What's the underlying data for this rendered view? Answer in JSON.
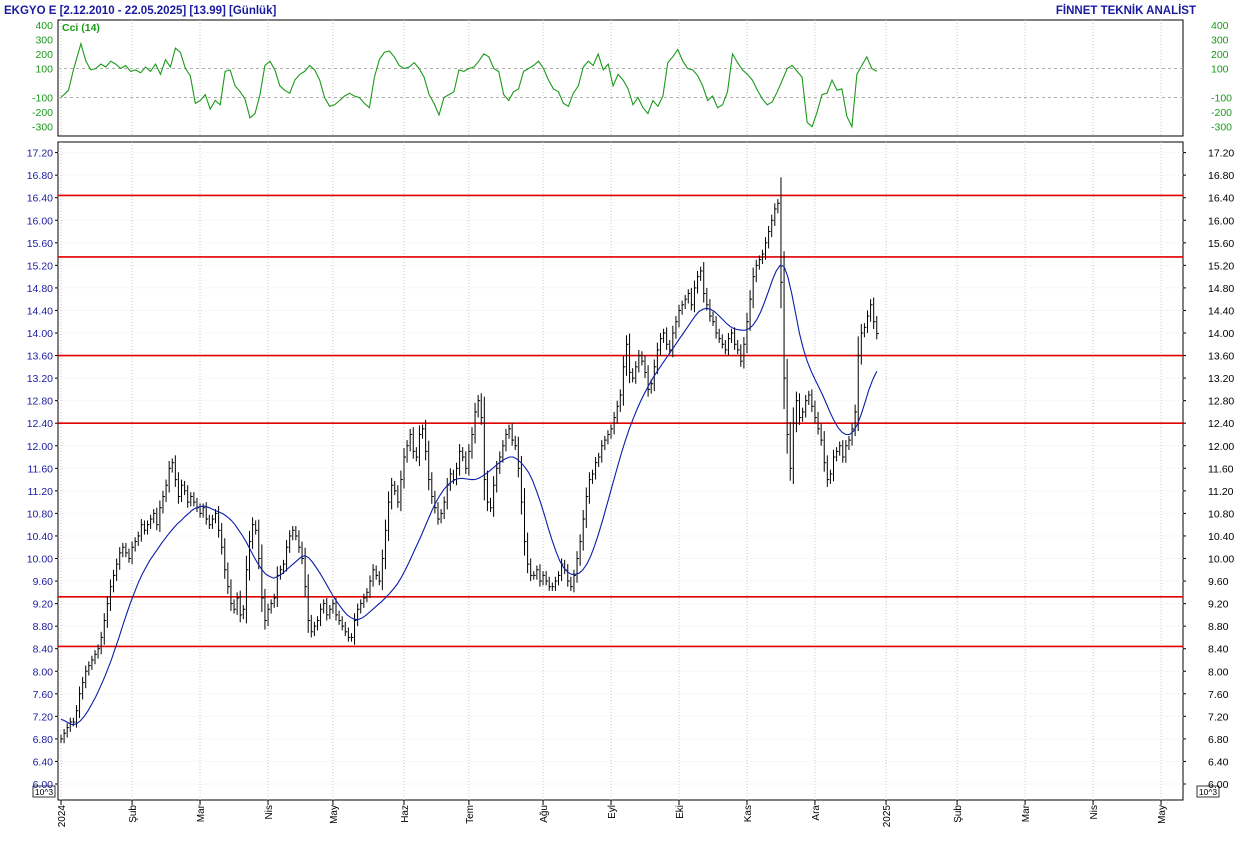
{
  "header": {
    "title": "EKGYO E  [2.12.2010 - 22.05.2025]  [13.99]  [Günlük]",
    "brand": "FİNNET TEKNİK ANALİST"
  },
  "colors": {
    "price_bars": "#000000",
    "moving_average": "#0b1ea8",
    "horizontal_levels": "#e00000",
    "cci_line": "#1a9a1a",
    "axis_text_left": "#1a1aa0",
    "cci_axis_text": "#1a9a1a",
    "brand_text": "#1a1aa0",
    "grid": "#c8c8c8"
  },
  "chart_data": [
    {
      "type": "line",
      "name": "cci-panel",
      "legend": "Cci (14)",
      "ylim": [
        -400,
        400
      ],
      "y_ticks": [
        "400",
        "300",
        "200",
        "100",
        "-100",
        "-200",
        "-300"
      ],
      "reference_lines": [
        100,
        -100
      ],
      "grid": true,
      "series": [
        {
          "name": "Cci (14)",
          "x": [
            0,
            3,
            5,
            8,
            10,
            12,
            14,
            16,
            18,
            20,
            22,
            24,
            26,
            28,
            30,
            32,
            34,
            36,
            38,
            40,
            42,
            44,
            46,
            48,
            50,
            52,
            54,
            56,
            58,
            60,
            62,
            64,
            66,
            68,
            70,
            72,
            74,
            76,
            78,
            80,
            82,
            84,
            86,
            88,
            90,
            92,
            94,
            96,
            98,
            100,
            102,
            104,
            106,
            108,
            110,
            112,
            114,
            116,
            118,
            120,
            122,
            124,
            126,
            128,
            130,
            132,
            134,
            136,
            138,
            140,
            142,
            144,
            146,
            148,
            150,
            152,
            154,
            156,
            158,
            160,
            162,
            164,
            166,
            168,
            170,
            172,
            174,
            176,
            178,
            180,
            182,
            184,
            186,
            188,
            190,
            192,
            194,
            196,
            198,
            200,
            202,
            204,
            206,
            208,
            210,
            212,
            214,
            216,
            218,
            220,
            222,
            224,
            226,
            228,
            230,
            232,
            234,
            236,
            238,
            240,
            242,
            244,
            246,
            248,
            250,
            252,
            254,
            256,
            258,
            260,
            262,
            264,
            266,
            268,
            270,
            272,
            274,
            276,
            278,
            280,
            282,
            284,
            286,
            288,
            290,
            292,
            294,
            296,
            298,
            300,
            302,
            304,
            306,
            308,
            310,
            312,
            314,
            316,
            318,
            320,
            322,
            324,
            326,
            328
          ],
          "values": [
            -100,
            -50,
            90,
            270,
            150,
            90,
            100,
            130,
            110,
            150,
            130,
            100,
            120,
            80,
            90,
            70,
            110,
            80,
            130,
            60,
            160,
            110,
            240,
            210,
            100,
            50,
            -140,
            -120,
            -80,
            -180,
            -120,
            -150,
            80,
            90,
            -20,
            -60,
            -110,
            -240,
            -210,
            -80,
            120,
            150,
            90,
            -20,
            -50,
            -70,
            20,
            60,
            80,
            120,
            90,
            20,
            -100,
            -160,
            -150,
            -120,
            -90,
            -70,
            -90,
            -100,
            -140,
            -170,
            40,
            160,
            210,
            220,
            180,
            120,
            100,
            110,
            140,
            100,
            40,
            -80,
            -140,
            -220,
            -100,
            -80,
            -60,
            90,
            80,
            100,
            110,
            150,
            200,
            180,
            100,
            80,
            -80,
            -120,
            -60,
            -40,
            80,
            100,
            120,
            150,
            100,
            20,
            -40,
            -60,
            -140,
            -160,
            -70,
            -20,
            110,
            150,
            120,
            200,
            90,
            130,
            -20,
            60,
            20,
            -40,
            -150,
            -100,
            -170,
            -210,
            -120,
            -160,
            -90,
            140,
            180,
            230,
            150,
            100,
            90,
            50,
            -20,
            -120,
            -90,
            -170,
            -150,
            -60,
            200,
            140,
            90,
            60,
            20,
            -50,
            -110,
            -150,
            -130,
            -60,
            20,
            100,
            120,
            80,
            40,
            -270,
            -300,
            -200,
            -80,
            -70,
            20,
            -50,
            -40,
            -230,
            -300,
            60,
            120,
            180,
            100,
            80
          ],
          "note_x_is_bar_index": "x is the bar index of the daily series"
        }
      ]
    },
    {
      "type": "bar",
      "name": "price-panel",
      "ylim": [
        6.0,
        17.4
      ],
      "y_ticks": [
        "17.20",
        "16.80",
        "16.40",
        "16.00",
        "15.60",
        "15.20",
        "14.80",
        "14.40",
        "14.00",
        "13.60",
        "13.20",
        "12.80",
        "12.40",
        "12.00",
        "11.60",
        "11.20",
        "10.80",
        "10.40",
        "10.00",
        "9.60",
        "9.20",
        "8.80",
        "8.40",
        "8.00",
        "7.60",
        "7.20",
        "6.80",
        "6.40",
        "6.00"
      ],
      "scale_label": "10^3",
      "x_labels": [
        "2024",
        "Şub",
        "Mar",
        "Nis",
        "May",
        "Haz",
        "Tem",
        "Ağu",
        "Eyl",
        "Eki",
        "Kas",
        "Ara",
        "2025",
        "Şub",
        "Mar",
        "Nis",
        "May"
      ],
      "x_label_bar_index": [
        0,
        23,
        45,
        67,
        88,
        111,
        132,
        156,
        178,
        200,
        222,
        244,
        267,
        290,
        312,
        334,
        356
      ],
      "horizontal_levels": [
        16.44,
        15.35,
        13.6,
        12.4,
        9.32,
        8.44
      ],
      "grid": true,
      "series": [
        {
          "name": "price",
          "representation": "high-low bars with close ticks",
          "close": [
            6.8,
            6.9,
            7.0,
            7.1,
            7.1,
            7.3,
            7.6,
            7.8,
            8.0,
            8.1,
            8.2,
            8.3,
            8.4,
            8.6,
            8.9,
            9.2,
            9.5,
            9.7,
            9.9,
            10.1,
            10.2,
            10.1,
            10.0,
            10.2,
            10.3,
            10.4,
            10.6,
            10.5,
            10.6,
            10.7,
            10.8,
            10.6,
            10.9,
            11.1,
            11.3,
            11.6,
            11.7,
            11.4,
            11.1,
            11.3,
            11.2,
            11.0,
            11.1,
            11.0,
            10.9,
            10.8,
            10.9,
            10.7,
            10.6,
            10.7,
            10.8,
            10.5,
            10.2,
            9.8,
            9.5,
            9.2,
            9.1,
            9.3,
            9.0,
            9.1,
            9.8,
            10.3,
            10.6,
            10.5,
            10.0,
            9.3,
            8.9,
            9.1,
            9.2,
            9.3,
            9.7,
            9.8,
            9.9,
            10.2,
            10.4,
            10.5,
            10.4,
            10.2,
            10.0,
            9.5,
            8.9,
            8.7,
            8.8,
            8.9,
            9.1,
            9.2,
            9.0,
            9.1,
            9.2,
            9.0,
            8.9,
            8.8,
            8.7,
            8.6,
            8.6,
            8.9,
            9.1,
            9.2,
            9.3,
            9.4,
            9.6,
            9.8,
            9.7,
            9.6,
            10.0,
            10.5,
            11.0,
            11.3,
            11.2,
            11.0,
            11.4,
            11.8,
            12.0,
            12.2,
            11.9,
            11.8,
            12.2,
            12.3,
            11.9,
            11.4,
            11.1,
            10.9,
            10.7,
            10.8,
            11.0,
            11.3,
            11.5,
            11.4,
            11.6,
            11.9,
            11.8,
            11.6,
            11.9,
            12.2,
            12.6,
            12.8,
            12.5,
            11.4,
            11.0,
            10.9,
            11.3,
            11.6,
            11.8,
            12.0,
            12.2,
            12.3,
            12.1,
            12.0,
            11.6,
            11.0,
            10.3,
            9.9,
            9.7,
            9.7,
            9.8,
            9.6,
            9.7,
            9.6,
            9.5,
            9.5,
            9.6,
            9.7,
            9.9,
            9.8,
            9.6,
            9.5,
            9.7,
            10.0,
            10.3,
            10.7,
            11.1,
            11.4,
            11.5,
            11.7,
            11.8,
            12.0,
            12.1,
            12.2,
            12.3,
            12.5,
            12.7,
            12.9,
            13.4,
            13.8,
            13.3,
            13.2,
            13.4,
            13.6,
            13.5,
            13.3,
            13.0,
            13.1,
            13.4,
            13.7,
            13.9,
            14.0,
            13.8,
            13.7,
            14.0,
            14.2,
            14.4,
            14.5,
            14.6,
            14.7,
            14.5,
            14.8,
            15.0,
            15.1,
            14.7,
            14.5,
            14.3,
            14.2,
            14.0,
            13.9,
            13.8,
            13.7,
            13.9,
            14.0,
            13.8,
            13.7,
            13.5,
            13.8,
            14.2,
            14.6,
            15.0,
            15.2,
            15.3,
            15.4,
            15.6,
            15.8,
            16.0,
            16.2,
            16.3,
            14.9,
            13.2,
            12.2,
            11.6,
            12.4,
            12.8,
            12.5,
            12.6,
            12.8,
            12.9,
            12.7,
            12.5,
            12.3,
            12.1,
            11.7,
            11.4,
            11.5,
            11.8,
            11.9,
            12.0,
            11.8,
            12.0,
            12.1,
            12.3,
            12.6,
            13.6,
            14.0,
            14.1,
            14.3,
            14.5,
            14.2,
            13.99
          ]
        },
        {
          "name": "moving-average",
          "representation": "smooth line",
          "values": [
            7.15,
            7.12,
            7.08,
            7.05,
            7.07,
            7.12,
            7.2,
            7.3,
            7.42,
            7.55,
            7.7,
            7.85,
            8.02,
            8.2,
            8.4,
            8.6,
            8.82,
            9.02,
            9.22,
            9.4,
            9.57,
            9.72,
            9.85,
            9.97,
            10.07,
            10.17,
            10.27,
            10.36,
            10.45,
            10.53,
            10.61,
            10.67,
            10.74,
            10.8,
            10.86,
            10.9,
            10.92,
            10.93,
            10.91,
            10.88,
            10.85,
            10.82,
            10.79,
            10.74,
            10.68,
            10.6,
            10.5,
            10.4,
            10.28,
            10.15,
            10.02,
            9.9,
            9.8,
            9.72,
            9.68,
            9.65,
            9.68,
            9.72,
            9.78,
            9.84,
            9.9,
            9.96,
            10.02,
            10.05,
            10.02,
            9.94,
            9.84,
            9.74,
            9.62,
            9.5,
            9.38,
            9.27,
            9.17,
            9.08,
            9.0,
            8.95,
            8.92,
            8.92,
            8.95,
            9.0,
            9.06,
            9.12,
            9.18,
            9.24,
            9.31,
            9.38,
            9.46,
            9.55,
            9.66,
            9.79,
            9.93,
            10.08,
            10.23,
            10.38,
            10.54,
            10.7,
            10.86,
            11.0,
            11.12,
            11.22,
            11.3,
            11.36,
            11.4,
            11.42,
            11.42,
            11.41,
            11.4,
            11.4,
            11.42,
            11.46,
            11.51,
            11.56,
            11.62,
            11.68,
            11.73,
            11.77,
            11.8,
            11.8,
            11.76,
            11.7,
            11.62,
            11.52,
            11.38,
            11.2,
            11.0,
            10.78,
            10.55,
            10.33,
            10.13,
            9.96,
            9.84,
            9.76,
            9.72,
            9.72,
            9.74,
            9.8,
            9.9,
            10.04,
            10.22,
            10.43,
            10.66,
            10.9,
            11.15,
            11.4,
            11.64,
            11.88,
            12.1,
            12.3,
            12.48,
            12.65,
            12.8,
            12.94,
            13.07,
            13.19,
            13.3,
            13.4,
            13.5,
            13.6,
            13.7,
            13.8,
            13.9,
            14.0,
            14.1,
            14.2,
            14.3,
            14.38,
            14.42,
            14.44,
            14.42,
            14.38,
            14.32,
            14.25,
            14.18,
            14.12,
            14.08,
            14.06,
            14.05,
            14.05,
            14.08,
            14.14,
            14.24,
            14.38,
            14.55,
            14.74,
            14.94,
            15.1,
            15.2,
            15.18,
            15.0,
            14.7,
            14.35,
            14.0,
            13.72,
            13.5,
            13.33,
            13.18,
            13.04,
            12.9,
            12.74,
            12.58,
            12.44,
            12.32,
            12.24,
            12.2,
            12.2,
            12.26,
            12.38,
            12.56,
            12.78,
            13.0,
            13.18,
            13.32
          ]
        }
      ]
    }
  ]
}
